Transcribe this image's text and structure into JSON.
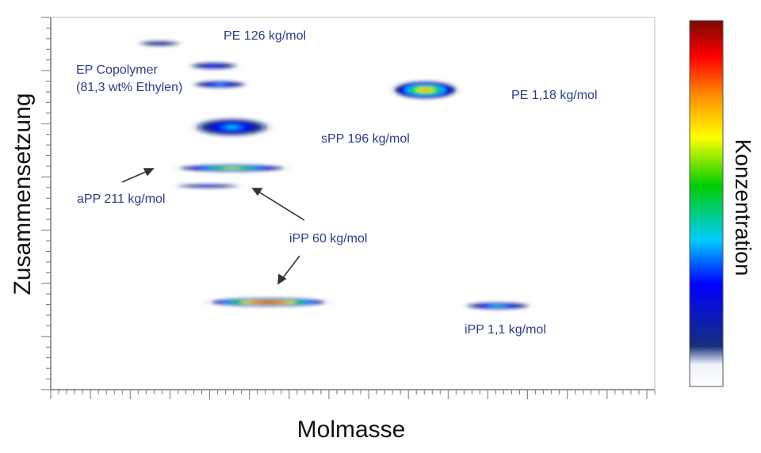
{
  "chart_data": {
    "type": "heatmap",
    "title": "",
    "xlabel": "Molmasse",
    "ylabel": "Zusammensetzung",
    "colorbar_label": "Konzentration",
    "grid": false,
    "legend": "colorbar-right",
    "colormap": [
      "#ffffff",
      "#eef2fb",
      "#15307a",
      "#0000ff",
      "#00ccff",
      "#00cc00",
      "#ffff00",
      "#ff8800",
      "#ff0000",
      "#7a0a00"
    ],
    "ylim": [
      0,
      1
    ],
    "xlim": [
      0,
      1
    ],
    "spots": [
      {
        "x": 0.18,
        "y": 0.93,
        "sx": 0.04,
        "sy": 0.008,
        "intensity": 0.3
      },
      {
        "x": 0.27,
        "y": 0.87,
        "sx": 0.045,
        "sy": 0.01,
        "intensity": 0.38
      },
      {
        "x": 0.28,
        "y": 0.82,
        "sx": 0.05,
        "sy": 0.01,
        "intensity": 0.45
      },
      {
        "x": 0.62,
        "y": 0.805,
        "sx": 0.06,
        "sy": 0.025,
        "intensity": 0.75
      },
      {
        "x": 0.3,
        "y": 0.705,
        "sx": 0.07,
        "sy": 0.025,
        "intensity": 0.45
      },
      {
        "x": 0.3,
        "y": 0.595,
        "sx": 0.1,
        "sy": 0.01,
        "intensity": 0.68
      },
      {
        "x": 0.26,
        "y": 0.547,
        "sx": 0.06,
        "sy": 0.006,
        "intensity": 0.35
      },
      {
        "x": 0.36,
        "y": 0.235,
        "sx": 0.11,
        "sy": 0.012,
        "intensity": 1.0
      },
      {
        "x": 0.74,
        "y": 0.225,
        "sx": 0.06,
        "sy": 0.01,
        "intensity": 0.5
      }
    ],
    "annotations": [
      {
        "text": "PE 126 kg/mol"
      },
      {
        "text": "EP Copolymer"
      },
      {
        "text": "(81,3 wt% Ethylen)"
      },
      {
        "text": "PE 1,18 kg/mol"
      },
      {
        "text": "sPP 196 kg/mol"
      },
      {
        "text": "aPP 211 kg/mol"
      },
      {
        "text": "iPP 60 kg/mol"
      },
      {
        "text": "iPP 1,1 kg/mol"
      }
    ]
  }
}
